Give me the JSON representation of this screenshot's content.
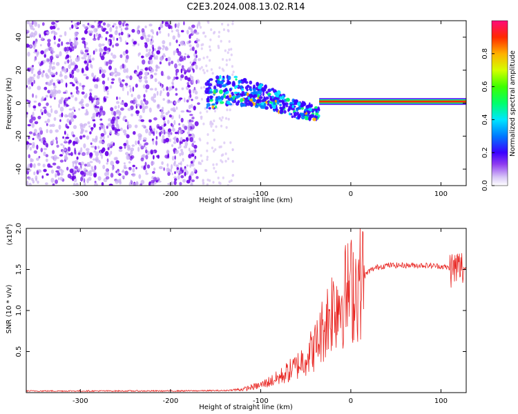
{
  "chart_data": [
    {
      "type": "heatmap",
      "title": "C2E3.2024.008.13.02.R14",
      "xlabel": "Height of straight line (km)",
      "ylabel": "Frequency (Hz)",
      "xlim": [
        -360,
        128
      ],
      "ylim": [
        -50,
        50
      ],
      "xticks": [
        -300,
        -200,
        -100,
        0,
        100
      ],
      "yticks": [
        -40,
        -20,
        0,
        20,
        40
      ],
      "colorbar": {
        "label": "Normalized spectral amplitude",
        "range": [
          0.0,
          1.0
        ],
        "ticks": [
          0.0,
          0.2,
          0.4,
          0.6,
          0.8
        ],
        "tick_labels": [
          "0.0",
          "0.2",
          "0.4",
          "0.6",
          "0.8"
        ]
      },
      "regions": [
        {
          "name": "noise",
          "x_range": [
            -360,
            -168
          ],
          "freq_range": [
            -50,
            50
          ],
          "amplitude": 0.12
        },
        {
          "name": "sparse-noise",
          "x_range": [
            -168,
            -130
          ],
          "freq_range": [
            -50,
            50
          ],
          "amplitude": 0.04
        },
        {
          "name": "broadening",
          "x_range": [
            -160,
            -35
          ],
          "center_freq": [
            5,
            8,
            6,
            2,
            -4,
            -6
          ],
          "amplitude": 0.3
        },
        {
          "name": "carrier",
          "x_range": [
            -35,
            128
          ],
          "center_freq": 1,
          "amplitude": 0.95
        }
      ]
    },
    {
      "type": "line",
      "xlabel": "Height of straight line (km)",
      "ylabel": "SNR (10 * v/v)",
      "y_scale_label": "(x10",
      "y_scale_exp": "4",
      "xlim": [
        -360,
        128
      ],
      "ylim": [
        0,
        20000
      ],
      "xticks": [
        -300,
        -200,
        -100,
        0,
        100
      ],
      "yticks": [
        5000,
        10000,
        15000,
        20000
      ],
      "ytick_labels": [
        "0.5",
        "1.0",
        "1.5",
        "2.0"
      ],
      "series": [
        {
          "name": "SNR",
          "color": "#e8231f",
          "x": [
            -360,
            -300,
            -200,
            -140,
            -120,
            -100,
            -80,
            -60,
            -40,
            -30,
            -20,
            -10,
            0,
            10,
            20,
            30,
            40,
            60,
            80,
            100,
            108,
            114,
            118,
            128
          ],
          "values": [
            200,
            200,
            200,
            250,
            400,
            900,
            1800,
            3200,
            5500,
            8000,
            10500,
            11500,
            12500,
            13500,
            14800,
            15300,
            15500,
            15500,
            15500,
            15400,
            15200,
            15000,
            15300,
            15100
          ]
        }
      ]
    }
  ],
  "colors": {
    "axis": "#000000",
    "snr_line": "#e8231f",
    "noise_primary": "#6a00e8",
    "noise_light": "#c9aef2"
  }
}
